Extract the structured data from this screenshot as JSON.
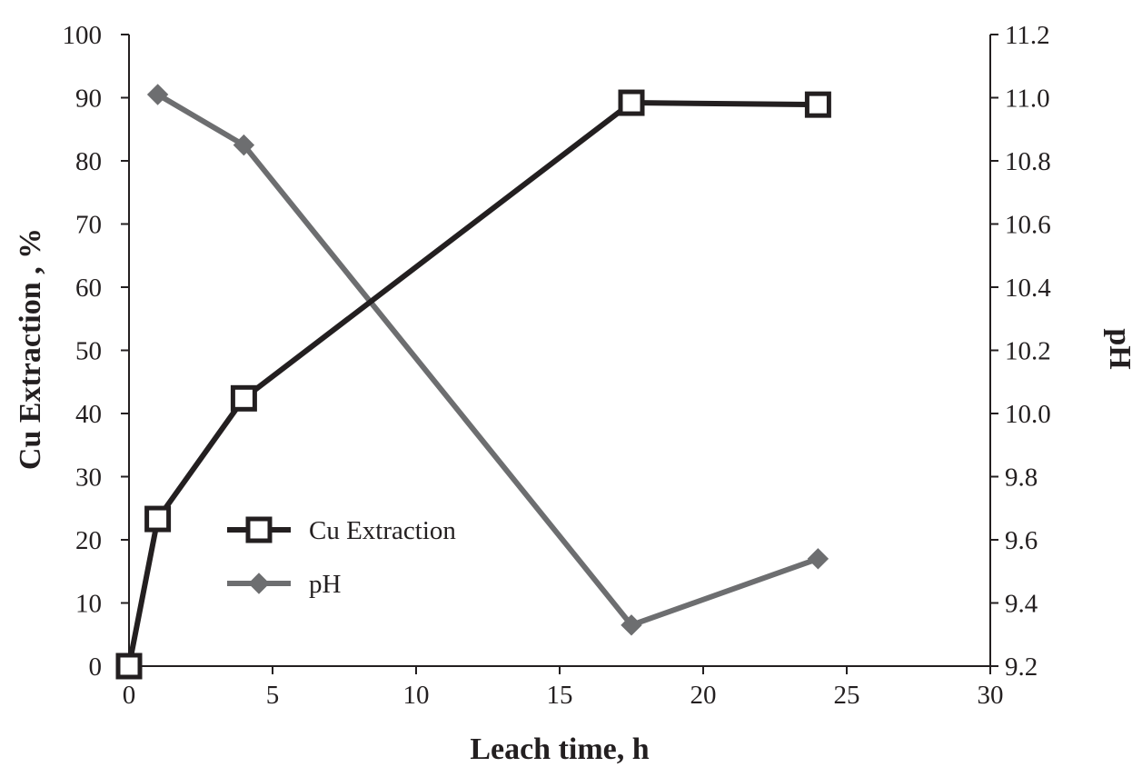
{
  "chart_data": {
    "type": "line",
    "xlabel": "Leach time, h",
    "ylabel_left": "Cu Extraction , %",
    "ylabel_right": "pH",
    "xlim": [
      0,
      30
    ],
    "ylim_left": [
      0,
      100
    ],
    "ylim_right": [
      9.2,
      11.2
    ],
    "x_ticks": [
      "0",
      "5",
      "10",
      "15",
      "20",
      "25",
      "30"
    ],
    "y_ticks_left": [
      "0",
      "10",
      "20",
      "30",
      "40",
      "50",
      "60",
      "70",
      "80",
      "90",
      "100"
    ],
    "y_ticks_right": [
      "9.2",
      "9.4",
      "9.6",
      "9.8",
      "10.0",
      "10.2",
      "10.4",
      "10.6",
      "10.8",
      "11.0",
      "11.2"
    ],
    "grid": false,
    "legend_position": "lower-left",
    "series": [
      {
        "name": "Cu Extraction",
        "axis": "left",
        "marker": "square",
        "color": "#231f20",
        "x": [
          0,
          1,
          4,
          17.5,
          24
        ],
        "y": [
          0,
          23.3,
          42.4,
          89.2,
          88.9
        ]
      },
      {
        "name": "pH",
        "axis": "right",
        "marker": "diamond",
        "color": "#6d6e70",
        "x": [
          1,
          4,
          17.5,
          24
        ],
        "y": [
          11.01,
          10.85,
          9.33,
          9.54
        ]
      }
    ]
  }
}
